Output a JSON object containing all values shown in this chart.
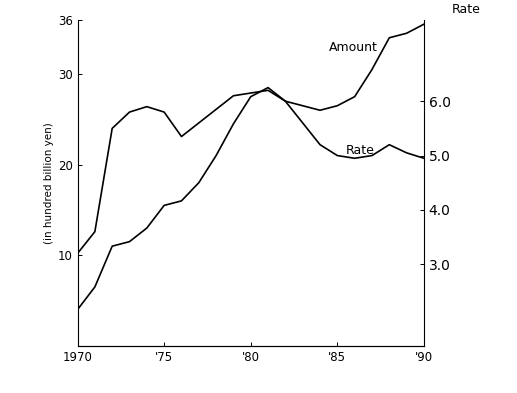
{
  "years": [
    1970,
    1971,
    1972,
    1973,
    1974,
    1975,
    1976,
    1977,
    1978,
    1979,
    1980,
    1981,
    1982,
    1983,
    1984,
    1985,
    1986,
    1987,
    1988,
    1989,
    1990
  ],
  "amount": [
    4.0,
    6.5,
    11.0,
    11.5,
    13.0,
    15.5,
    16.0,
    18.0,
    21.0,
    24.5,
    27.5,
    28.5,
    27.0,
    26.5,
    26.0,
    26.5,
    27.5,
    30.5,
    34.0,
    34.5,
    35.5
  ],
  "rate": [
    3.2,
    3.6,
    5.5,
    5.8,
    5.9,
    5.8,
    5.35,
    5.6,
    5.85,
    6.1,
    6.15,
    6.2,
    6.0,
    5.6,
    5.2,
    5.0,
    4.95,
    5.0,
    5.2,
    5.05,
    4.95
  ],
  "left_ylim": [
    0,
    36
  ],
  "left_yticks": [
    10,
    20,
    30,
    36
  ],
  "right_ylim": [
    1.5,
    7.5
  ],
  "right_yticks": [
    3.0,
    4.0,
    5.0,
    6.0
  ],
  "xlim": [
    1970,
    1990
  ],
  "xticks": [
    1970,
    1975,
    1980,
    1985,
    1990
  ],
  "xlabel_labels": [
    "1970",
    "'75",
    "'80",
    "'85",
    "'90"
  ],
  "ylabel_left": "(in hundred billion yen)",
  "label_amount": "Amount",
  "label_rate": "Rate",
  "label_rate_axis": "Rate",
  "line_color": "#000000",
  "background_color": "#ffffff"
}
